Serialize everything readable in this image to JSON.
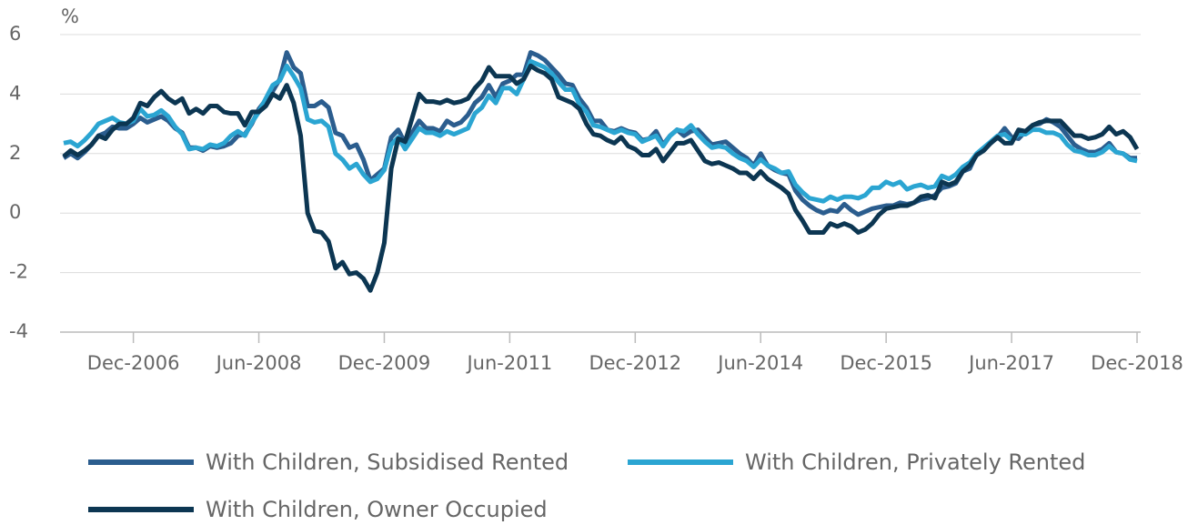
{
  "chart_data": {
    "type": "line",
    "y_unit": "%",
    "x": [
      "Feb-2006",
      "Mar-2006",
      "Apr-2006",
      "May-2006",
      "Jun-2006",
      "Jul-2006",
      "Aug-2006",
      "Sep-2006",
      "Oct-2006",
      "Nov-2006",
      "Dec-2006",
      "Jan-2007",
      "Feb-2007",
      "Mar-2007",
      "Apr-2007",
      "May-2007",
      "Jun-2007",
      "Jul-2007",
      "Aug-2007",
      "Sep-2007",
      "Oct-2007",
      "Nov-2007",
      "Dec-2007",
      "Jan-2008",
      "Feb-2008",
      "Mar-2008",
      "Apr-2008",
      "May-2008",
      "Jun-2008",
      "Jul-2008",
      "Aug-2008",
      "Sep-2008",
      "Oct-2008",
      "Nov-2008",
      "Dec-2008",
      "Jan-2009",
      "Feb-2009",
      "Mar-2009",
      "Apr-2009",
      "May-2009",
      "Jun-2009",
      "Jul-2009",
      "Aug-2009",
      "Sep-2009",
      "Oct-2009",
      "Nov-2009",
      "Dec-2009",
      "Jan-2010",
      "Feb-2010",
      "Mar-2010",
      "Apr-2010",
      "May-2010",
      "Jun-2010",
      "Jul-2010",
      "Aug-2010",
      "Sep-2010",
      "Oct-2010",
      "Nov-2010",
      "Dec-2010",
      "Jan-2011",
      "Feb-2011",
      "Mar-2011",
      "Apr-2011",
      "May-2011",
      "Jun-2011",
      "Jul-2011",
      "Aug-2011",
      "Sep-2011",
      "Oct-2011",
      "Nov-2011",
      "Dec-2011",
      "Jan-2012",
      "Feb-2012",
      "Mar-2012",
      "Apr-2012",
      "May-2012",
      "Jun-2012",
      "Jul-2012",
      "Aug-2012",
      "Sep-2012",
      "Oct-2012",
      "Nov-2012",
      "Dec-2012",
      "Jan-2013",
      "Feb-2013",
      "Mar-2013",
      "Apr-2013",
      "May-2013",
      "Jun-2013",
      "Jul-2013",
      "Aug-2013",
      "Sep-2013",
      "Oct-2013",
      "Nov-2013",
      "Dec-2013",
      "Jan-2014",
      "Feb-2014",
      "Mar-2014",
      "Apr-2014",
      "May-2014",
      "Jun-2014",
      "Jul-2014",
      "Aug-2014",
      "Sep-2014",
      "Oct-2014",
      "Nov-2014",
      "Dec-2014",
      "Jan-2015",
      "Feb-2015",
      "Mar-2015",
      "Apr-2015",
      "May-2015",
      "Jun-2015",
      "Jul-2015",
      "Aug-2015",
      "Sep-2015",
      "Oct-2015",
      "Nov-2015",
      "Dec-2015",
      "Jan-2016",
      "Feb-2016",
      "Mar-2016",
      "Apr-2016",
      "May-2016",
      "Jun-2016",
      "Jul-2016",
      "Aug-2016",
      "Sep-2016",
      "Oct-2016",
      "Nov-2016",
      "Dec-2016",
      "Jan-2017",
      "Feb-2017",
      "Mar-2017",
      "Apr-2017",
      "May-2017",
      "Jun-2017",
      "Jul-2017",
      "Aug-2017",
      "Sep-2017",
      "Oct-2017",
      "Nov-2017",
      "Dec-2017",
      "Jan-2018",
      "Feb-2018",
      "Mar-2018",
      "Apr-2018",
      "May-2018",
      "Jun-2018",
      "Jul-2018",
      "Aug-2018",
      "Sep-2018",
      "Oct-2018",
      "Nov-2018",
      "Dec-2018"
    ],
    "xticks": [
      "Dec-2006",
      "Jun-2008",
      "Dec-2009",
      "Jun-2011",
      "Dec-2012",
      "Jun-2014",
      "Dec-2015",
      "Jun-2017",
      "Dec-2018"
    ],
    "ylim": [
      -4,
      6
    ],
    "yticks": [
      -4,
      -2,
      0,
      2,
      4,
      6
    ],
    "grid": true,
    "series": [
      {
        "name": "With Children, Subsidised Rented",
        "color": "#2b5d8e",
        "values": [
          1.85,
          2.0,
          1.85,
          2.05,
          2.3,
          2.6,
          2.7,
          2.9,
          2.85,
          2.85,
          3.0,
          3.2,
          3.05,
          3.15,
          3.25,
          3.1,
          2.85,
          2.7,
          2.2,
          2.2,
          2.1,
          2.25,
          2.2,
          2.25,
          2.35,
          2.6,
          2.65,
          3.0,
          3.5,
          3.8,
          4.1,
          4.5,
          5.4,
          4.9,
          4.7,
          3.6,
          3.6,
          3.75,
          3.55,
          2.7,
          2.6,
          2.2,
          2.3,
          1.8,
          1.1,
          1.3,
          1.5,
          2.55,
          2.8,
          2.35,
          2.7,
          3.1,
          2.85,
          2.85,
          2.75,
          3.1,
          2.95,
          3.05,
          3.3,
          3.7,
          3.9,
          4.3,
          3.9,
          4.35,
          4.45,
          4.65,
          4.65,
          5.4,
          5.3,
          5.15,
          4.9,
          4.65,
          4.35,
          4.3,
          3.85,
          3.55,
          3.1,
          3.1,
          2.8,
          2.75,
          2.85,
          2.75,
          2.7,
          2.45,
          2.5,
          2.75,
          2.3,
          2.6,
          2.8,
          2.6,
          2.75,
          2.8,
          2.55,
          2.3,
          2.35,
          2.4,
          2.2,
          2.0,
          1.85,
          1.6,
          2.0,
          1.6,
          1.45,
          1.35,
          1.3,
          0.75,
          0.45,
          0.25,
          0.1,
          0.0,
          0.1,
          0.05,
          0.3,
          0.1,
          -0.05,
          0.05,
          0.15,
          0.2,
          0.25,
          0.25,
          0.35,
          0.3,
          0.35,
          0.45,
          0.5,
          0.6,
          0.85,
          0.9,
          1.0,
          1.4,
          1.5,
          2.0,
          2.15,
          2.35,
          2.55,
          2.85,
          2.55,
          2.5,
          2.75,
          2.95,
          3.0,
          3.15,
          3.05,
          2.9,
          2.6,
          2.3,
          2.15,
          2.05,
          2.05,
          2.15,
          2.35,
          2.05,
          2.0,
          1.85,
          1.85
        ]
      },
      {
        "name": "With Children, Privately Rented",
        "color": "#2ba5d2",
        "values": [
          2.35,
          2.4,
          2.25,
          2.45,
          2.7,
          3.0,
          3.1,
          3.2,
          3.05,
          3.0,
          3.1,
          3.5,
          3.25,
          3.3,
          3.45,
          3.25,
          2.9,
          2.65,
          2.15,
          2.2,
          2.15,
          2.3,
          2.25,
          2.35,
          2.6,
          2.75,
          2.6,
          3.05,
          3.4,
          3.85,
          4.3,
          4.45,
          4.95,
          4.6,
          4.2,
          3.15,
          3.05,
          3.1,
          2.9,
          2.0,
          1.8,
          1.5,
          1.65,
          1.3,
          1.05,
          1.15,
          1.45,
          2.3,
          2.55,
          2.15,
          2.5,
          2.85,
          2.7,
          2.7,
          2.6,
          2.75,
          2.65,
          2.75,
          2.85,
          3.35,
          3.55,
          3.95,
          3.7,
          4.2,
          4.2,
          4.0,
          4.5,
          5.1,
          5.0,
          4.9,
          4.7,
          4.4,
          4.15,
          4.15,
          3.65,
          3.4,
          2.95,
          2.9,
          2.8,
          2.7,
          2.8,
          2.7,
          2.65,
          2.4,
          2.5,
          2.6,
          2.25,
          2.6,
          2.8,
          2.75,
          2.95,
          2.65,
          2.4,
          2.2,
          2.25,
          2.2,
          2.0,
          1.85,
          1.75,
          1.55,
          1.8,
          1.6,
          1.5,
          1.35,
          1.4,
          0.95,
          0.7,
          0.5,
          0.45,
          0.4,
          0.55,
          0.45,
          0.55,
          0.55,
          0.5,
          0.6,
          0.85,
          0.85,
          1.05,
          0.95,
          1.05,
          0.8,
          0.9,
          0.95,
          0.85,
          0.9,
          1.25,
          1.15,
          1.3,
          1.55,
          1.7,
          2.0,
          2.2,
          2.4,
          2.6,
          2.65,
          2.45,
          2.65,
          2.65,
          2.8,
          2.8,
          2.7,
          2.7,
          2.6,
          2.3,
          2.1,
          2.05,
          1.95,
          1.95,
          2.05,
          2.25,
          2.05,
          2.0,
          1.8,
          1.75
        ]
      },
      {
        "name": "With Children, Owner Occupied",
        "color": "#0c3652",
        "values": [
          1.9,
          2.1,
          1.95,
          2.1,
          2.3,
          2.6,
          2.5,
          2.8,
          3.0,
          3.0,
          3.2,
          3.7,
          3.6,
          3.9,
          4.1,
          3.85,
          3.7,
          3.85,
          3.35,
          3.5,
          3.35,
          3.6,
          3.6,
          3.4,
          3.35,
          3.35,
          2.95,
          3.4,
          3.4,
          3.6,
          4.0,
          3.85,
          4.3,
          3.7,
          2.6,
          0.0,
          -0.6,
          -0.65,
          -0.95,
          -1.85,
          -1.65,
          -2.05,
          -2.0,
          -2.2,
          -2.6,
          -2.0,
          -1.0,
          1.5,
          2.5,
          2.4,
          3.2,
          4.0,
          3.75,
          3.75,
          3.7,
          3.8,
          3.7,
          3.75,
          3.85,
          4.2,
          4.45,
          4.9,
          4.6,
          4.6,
          4.6,
          4.35,
          4.5,
          4.95,
          4.8,
          4.7,
          4.5,
          3.9,
          3.8,
          3.7,
          3.5,
          3.0,
          2.65,
          2.6,
          2.45,
          2.35,
          2.55,
          2.25,
          2.15,
          1.95,
          1.95,
          2.15,
          1.75,
          2.05,
          2.35,
          2.35,
          2.45,
          2.1,
          1.75,
          1.65,
          1.7,
          1.6,
          1.5,
          1.35,
          1.35,
          1.15,
          1.4,
          1.15,
          1.0,
          0.85,
          0.65,
          0.1,
          -0.25,
          -0.65,
          -0.65,
          -0.65,
          -0.35,
          -0.45,
          -0.35,
          -0.45,
          -0.65,
          -0.55,
          -0.35,
          -0.05,
          0.15,
          0.2,
          0.25,
          0.25,
          0.35,
          0.55,
          0.6,
          0.5,
          1.05,
          0.95,
          1.05,
          1.4,
          1.6,
          1.95,
          2.1,
          2.35,
          2.55,
          2.35,
          2.35,
          2.8,
          2.75,
          2.95,
          3.05,
          3.1,
          3.1,
          3.1,
          2.85,
          2.6,
          2.6,
          2.5,
          2.55,
          2.65,
          2.9,
          2.65,
          2.75,
          2.55,
          2.15
        ]
      }
    ]
  }
}
